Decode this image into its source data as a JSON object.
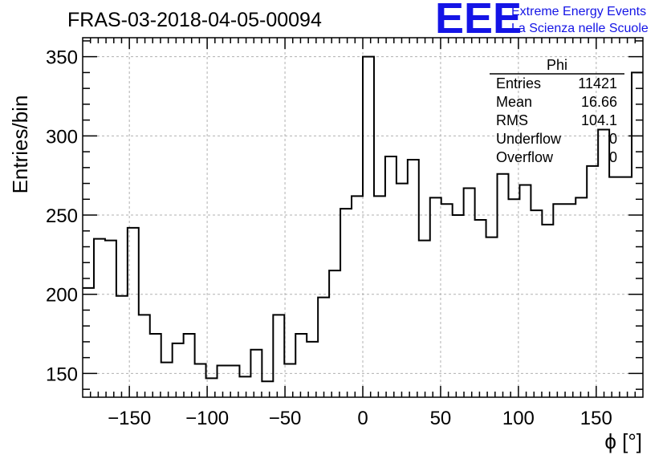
{
  "header": {
    "title": "FRAS-03-2018-04-05-00094"
  },
  "logo": {
    "mark": "EEE",
    "line1": "Extreme Energy Events",
    "line2": "La Scienza nelle Scuole",
    "color": "#1414e6"
  },
  "stats": {
    "name": "Phi",
    "rows": [
      {
        "label": "Entries",
        "value": "11421"
      },
      {
        "label": "Mean",
        "value": "16.66"
      },
      {
        "label": "RMS",
        "value": "104.1"
      },
      {
        "label": "Underflow",
        "value": "0"
      },
      {
        "label": "Overflow",
        "value": "0"
      }
    ]
  },
  "chart_data": {
    "type": "bar",
    "histogram": true,
    "xlabel": "ϕ [°]",
    "ylabel": "Entries/bin",
    "xlim": [
      -180,
      180
    ],
    "ylim": [
      135,
      362
    ],
    "grid": true,
    "bin_width": 7.2,
    "xticks": [
      -150,
      -100,
      -50,
      0,
      50,
      100,
      150
    ],
    "yticks": [
      150,
      200,
      250,
      300,
      350
    ],
    "values": [
      204,
      235,
      234,
      199,
      242,
      187,
      175,
      157,
      169,
      175,
      156,
      147,
      155,
      155,
      148,
      165,
      145,
      187,
      156,
      175,
      170,
      198,
      215,
      254,
      262,
      350,
      262,
      287,
      270,
      285,
      234,
      261,
      257,
      250,
      267,
      247,
      236,
      276,
      260,
      269,
      253,
      244,
      257,
      257,
      261,
      281,
      304,
      274,
      274,
      340
    ]
  }
}
